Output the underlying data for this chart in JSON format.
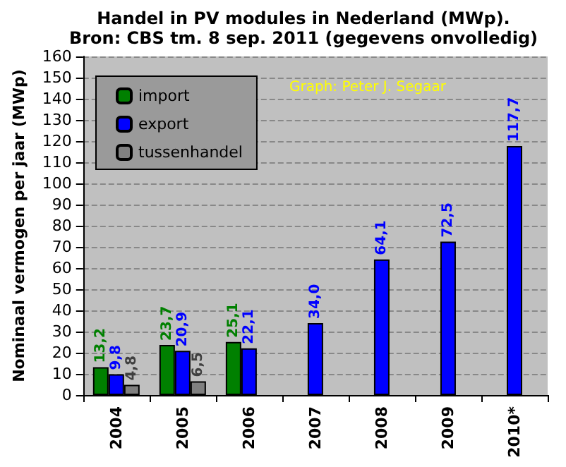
{
  "chart_data": {
    "type": "bar",
    "title": "Handel in PV modules in Nederland (MWp).",
    "subtitle": "Bron: CBS tm. 8 sep. 2011 (gegevens onvolledig)",
    "ylabel": "Nominaal vermogen per jaar (MWp)",
    "annotations": [
      "Graph: Peter J. Segaar"
    ],
    "categories": [
      "2004",
      "2005",
      "2006",
      "2007",
      "2008",
      "2009",
      "2010*"
    ],
    "series": [
      {
        "name": "import",
        "color": "#008000",
        "values": [
          13.2,
          23.7,
          25.1,
          null,
          null,
          null,
          null
        ],
        "value_labels": [
          "13,2",
          "23,7",
          "25,1",
          null,
          null,
          null,
          null
        ]
      },
      {
        "name": "export",
        "color": "#0000ff",
        "values": [
          9.8,
          20.9,
          22.1,
          34.0,
          64.1,
          72.5,
          117.7
        ],
        "value_labels": [
          "9,8",
          "20,9",
          "22,1",
          "34,0",
          "64,1",
          "72,5",
          "117,7"
        ]
      },
      {
        "name": "tussenhandel",
        "color": "#808080",
        "values": [
          4.8,
          6.5,
          null,
          null,
          null,
          null,
          null
        ],
        "value_labels": [
          "4,8",
          "6,5",
          null,
          null,
          null,
          null,
          null
        ]
      }
    ],
    "ylim": [
      0,
      160
    ],
    "yticks": [
      0,
      10,
      20,
      30,
      40,
      50,
      60,
      70,
      80,
      90,
      100,
      110,
      120,
      130,
      140,
      150,
      160
    ],
    "grid": "y",
    "legend": "top left"
  }
}
